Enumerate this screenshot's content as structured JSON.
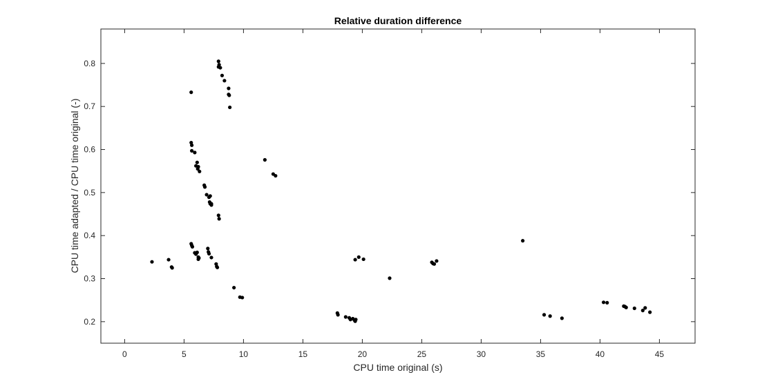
{
  "chart_data": {
    "type": "scatter",
    "title": "Relative duration difference",
    "xlabel": "CPU time original (s)",
    "ylabel": "CPU time adapted / CPU time original (-)",
    "xlim": [
      -2,
      48
    ],
    "ylim": [
      0.15,
      0.88
    ],
    "xticks": [
      0,
      5,
      10,
      15,
      20,
      25,
      30,
      35,
      40,
      45
    ],
    "yticks": [
      0.2,
      0.3,
      0.4,
      0.5,
      0.6,
      0.7,
      0.8
    ],
    "grid": false,
    "marker_color": "#000000",
    "series": [
      {
        "points": [
          [
            2.3,
            0.339
          ],
          [
            3.7,
            0.344
          ],
          [
            3.95,
            0.327
          ],
          [
            4.0,
            0.325
          ],
          [
            5.6,
            0.733
          ],
          [
            5.6,
            0.616
          ],
          [
            5.65,
            0.61
          ],
          [
            5.65,
            0.597
          ],
          [
            5.9,
            0.593
          ],
          [
            6.0,
            0.562
          ],
          [
            6.1,
            0.57
          ],
          [
            6.15,
            0.555
          ],
          [
            6.2,
            0.56
          ],
          [
            6.3,
            0.549
          ],
          [
            6.7,
            0.517
          ],
          [
            6.75,
            0.513
          ],
          [
            6.9,
            0.495
          ],
          [
            7.1,
            0.489
          ],
          [
            7.2,
            0.492
          ],
          [
            7.15,
            0.478
          ],
          [
            7.2,
            0.474
          ],
          [
            7.3,
            0.471
          ],
          [
            7.3,
            0.474
          ],
          [
            7.9,
            0.447
          ],
          [
            7.95,
            0.439
          ],
          [
            5.6,
            0.381
          ],
          [
            5.65,
            0.377
          ],
          [
            5.7,
            0.374
          ],
          [
            5.9,
            0.36
          ],
          [
            6.0,
            0.357
          ],
          [
            6.1,
            0.361
          ],
          [
            6.2,
            0.35
          ],
          [
            6.2,
            0.345
          ],
          [
            6.25,
            0.348
          ],
          [
            7.0,
            0.37
          ],
          [
            7.05,
            0.362
          ],
          [
            7.1,
            0.358
          ],
          [
            7.3,
            0.349
          ],
          [
            7.7,
            0.334
          ],
          [
            7.75,
            0.328
          ],
          [
            7.8,
            0.326
          ],
          [
            7.9,
            0.805
          ],
          [
            7.95,
            0.797
          ],
          [
            7.9,
            0.792
          ],
          [
            8.05,
            0.79
          ],
          [
            8.2,
            0.772
          ],
          [
            8.4,
            0.76
          ],
          [
            8.75,
            0.742
          ],
          [
            8.75,
            0.728
          ],
          [
            8.8,
            0.726
          ],
          [
            8.85,
            0.698
          ],
          [
            9.2,
            0.279
          ],
          [
            9.7,
            0.257
          ],
          [
            9.9,
            0.256
          ],
          [
            11.8,
            0.576
          ],
          [
            12.5,
            0.543
          ],
          [
            12.7,
            0.539
          ],
          [
            17.9,
            0.22
          ],
          [
            17.95,
            0.216
          ],
          [
            18.6,
            0.211
          ],
          [
            18.9,
            0.209
          ],
          [
            19.0,
            0.205
          ],
          [
            19.2,
            0.207
          ],
          [
            19.35,
            0.203
          ],
          [
            19.4,
            0.201
          ],
          [
            19.45,
            0.205
          ],
          [
            19.4,
            0.344
          ],
          [
            19.7,
            0.35
          ],
          [
            20.1,
            0.345
          ],
          [
            22.3,
            0.301
          ],
          [
            25.85,
            0.338
          ],
          [
            25.95,
            0.335
          ],
          [
            26.05,
            0.334
          ],
          [
            26.25,
            0.341
          ],
          [
            33.5,
            0.388
          ],
          [
            35.3,
            0.216
          ],
          [
            35.8,
            0.213
          ],
          [
            36.8,
            0.208
          ],
          [
            40.3,
            0.245
          ],
          [
            40.6,
            0.244
          ],
          [
            42.0,
            0.236
          ],
          [
            42.1,
            0.235
          ],
          [
            42.2,
            0.233
          ],
          [
            42.9,
            0.231
          ],
          [
            43.6,
            0.226
          ],
          [
            43.8,
            0.232
          ],
          [
            44.2,
            0.222
          ]
        ]
      }
    ]
  }
}
